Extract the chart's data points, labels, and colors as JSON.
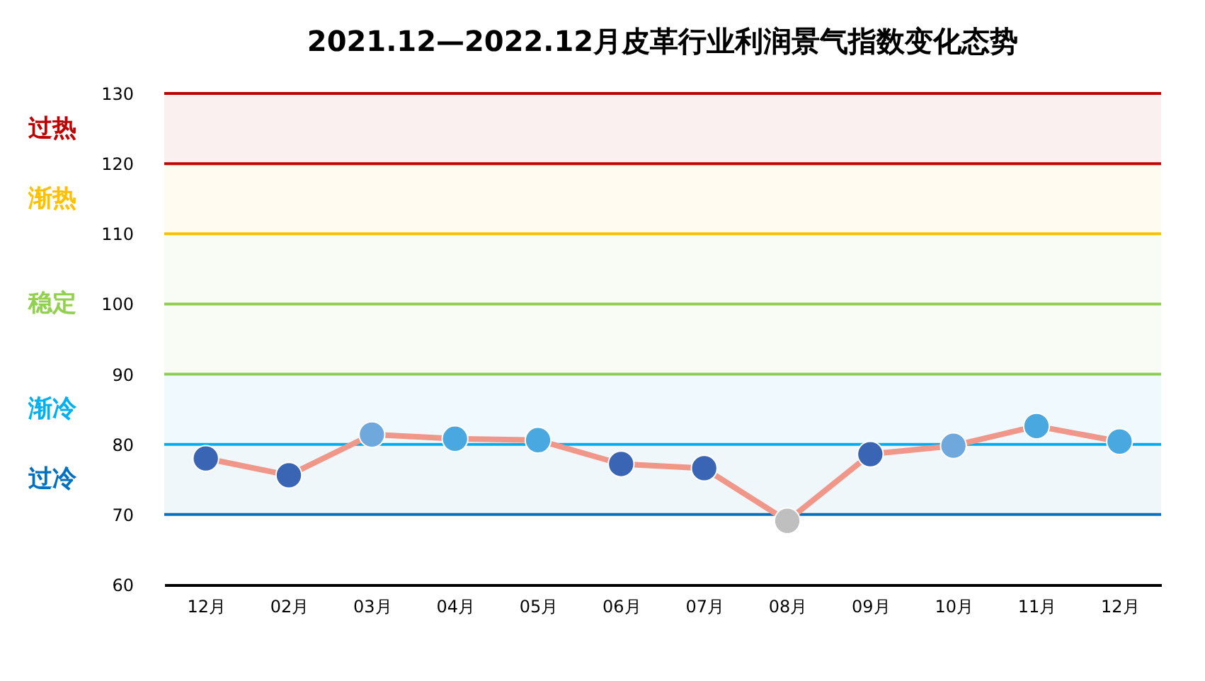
{
  "chart_data": {
    "type": "line",
    "title": "2021.12—2022.12月皮革行业利润景气指数变化态势",
    "categories": [
      "12月",
      "02月",
      "03月",
      "04月",
      "05月",
      "06月",
      "07月",
      "08月",
      "09月",
      "10月",
      "11月",
      "12月"
    ],
    "series": [
      {
        "color": "#f0978a",
        "values": [
          78.0,
          75.6,
          81.4,
          80.8,
          80.6,
          77.2,
          76.6,
          69.1,
          78.6,
          79.8,
          82.6,
          80.4
        ],
        "colors": [
          "#3a64b4",
          "#3a64b4",
          "#6fa8dc",
          "#4aa8e0",
          "#4aa8e0",
          "#3a64b4",
          "#3a64b4",
          "#bfbfbf",
          "#3a64b4",
          "#6fa8dc",
          "#4aa8e0",
          "#4aa8e0"
        ]
      }
    ],
    "ylim": [
      60,
      130
    ],
    "yticks": [
      60,
      70,
      80,
      90,
      100,
      110,
      120,
      130
    ],
    "ref_lines": [
      {
        "axis": "y",
        "value": 130,
        "color": "#c00000"
      },
      {
        "axis": "y",
        "value": 120,
        "color": "#c00000"
      },
      {
        "axis": "y",
        "value": 110,
        "color": "#ffc000"
      },
      {
        "axis": "y",
        "value": 100,
        "color": "#92d050"
      },
      {
        "axis": "y",
        "value": 90,
        "color": "#92d050"
      },
      {
        "axis": "y",
        "value": 80,
        "color": "#00b0f0"
      },
      {
        "axis": "y",
        "value": 70,
        "color": "#0070c0"
      }
    ],
    "bands": [
      {
        "axis": "y",
        "from": 120,
        "to": 130,
        "label": "过热",
        "color": "#c00000"
      },
      {
        "axis": "y",
        "from": 110,
        "to": 120,
        "label": "渐热",
        "color": "#ffc000"
      },
      {
        "axis": "y",
        "from": 90,
        "to": 110,
        "label": "稳定",
        "color": "#92d050"
      },
      {
        "axis": "y",
        "from": 80,
        "to": 90,
        "label": "渐冷",
        "color": "#00b0f0"
      },
      {
        "axis": "y",
        "from": 70,
        "to": 80,
        "label": "过冷",
        "color": "#0070c0"
      }
    ],
    "marker": "circle",
    "grid": false
  }
}
